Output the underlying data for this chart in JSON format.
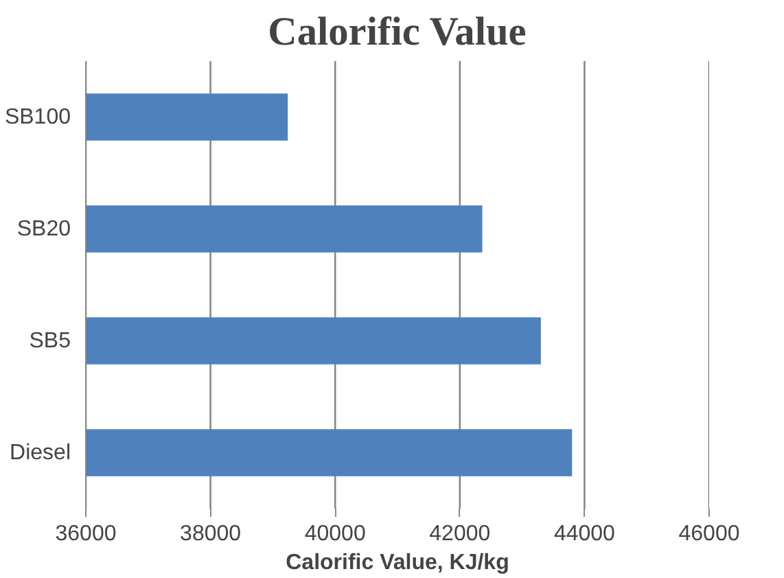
{
  "chart_data": {
    "type": "bar",
    "orientation": "horizontal",
    "title": "Calorific Value",
    "xlabel": "Calorific Value, KJ/kg",
    "categories": [
      "SB100",
      "SB20",
      "SB5",
      "Diesel"
    ],
    "values": [
      39240,
      42360,
      43300,
      43800
    ],
    "color": "#4f81bd",
    "xlim": [
      36000,
      46000
    ],
    "xticks": [
      36000,
      38000,
      40000,
      42000,
      44000,
      46000
    ],
    "grid": "x"
  }
}
